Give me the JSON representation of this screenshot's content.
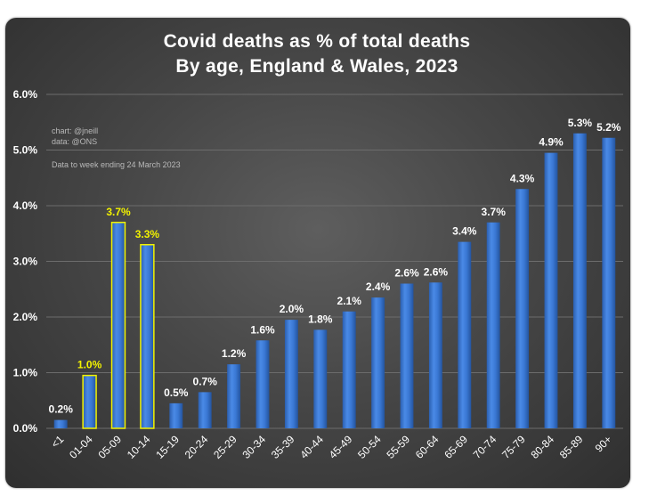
{
  "chart_data": {
    "type": "bar",
    "title": "Covid deaths as % of total deaths",
    "subtitle": "By age, England & Wales, 2023",
    "xlabel": "",
    "ylabel": "",
    "ylim": [
      0,
      6
    ],
    "yticks": [
      "0.0%",
      "1.0%",
      "2.0%",
      "3.0%",
      "4.0%",
      "5.0%",
      "6.0%"
    ],
    "grid": true,
    "categories": [
      "<1",
      "01-04",
      "05-09",
      "10-14",
      "15-19",
      "20-24",
      "25-29",
      "30-34",
      "35-39",
      "40-44",
      "45-49",
      "50-54",
      "55-59",
      "60-64",
      "65-69",
      "70-74",
      "75-79",
      "80-84",
      "85-89",
      "90+"
    ],
    "values": [
      0.15,
      0.95,
      3.7,
      3.3,
      0.45,
      0.65,
      1.15,
      1.58,
      1.95,
      1.77,
      2.1,
      2.35,
      2.6,
      2.62,
      3.35,
      3.7,
      4.3,
      4.95,
      5.3,
      5.22
    ],
    "labels": [
      "0.2%",
      "1.0%",
      "3.7%",
      "3.3%",
      "0.5%",
      "0.7%",
      "1.2%",
      "1.6%",
      "2.0%",
      "1.8%",
      "2.1%",
      "2.4%",
      "2.6%",
      "2.6%",
      "3.4%",
      "3.7%",
      "4.3%",
      "4.9%",
      "5.3%",
      "5.2%"
    ],
    "highlighted": [
      false,
      true,
      true,
      true,
      false,
      false,
      false,
      false,
      false,
      false,
      false,
      false,
      false,
      false,
      false,
      false,
      false,
      false,
      false,
      false
    ],
    "notes": [
      "chart: @jneill",
      "data: @ONS",
      "Data to week ending 24 March 2023"
    ],
    "colors": {
      "bar": "#3a78d4",
      "bar_highlight_border": "#f2f200",
      "highlight_label": "#f2f200",
      "label": "#ffffff",
      "grid": "#6c6c6c"
    }
  }
}
